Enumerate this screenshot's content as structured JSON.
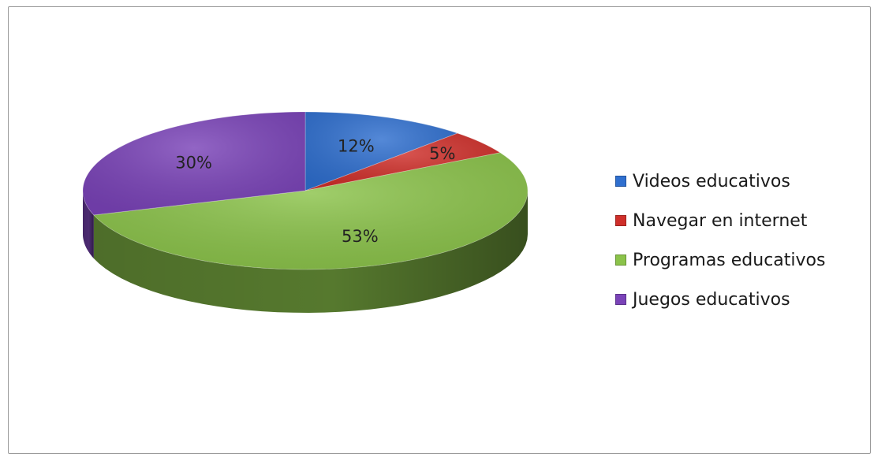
{
  "chart_data": {
    "type": "pie",
    "categories": [
      "Videos educativos",
      "Navegar en internet",
      "Programas educativos",
      "Juegos educativos"
    ],
    "values": [
      12,
      5,
      53,
      30
    ],
    "labels": [
      "12%",
      "5%",
      "53%",
      "30%"
    ],
    "colors": [
      "#2f6fcf",
      "#cf2f2a",
      "#8bc34a",
      "#7a43b8"
    ],
    "legend_position": "right",
    "style": "3d"
  }
}
